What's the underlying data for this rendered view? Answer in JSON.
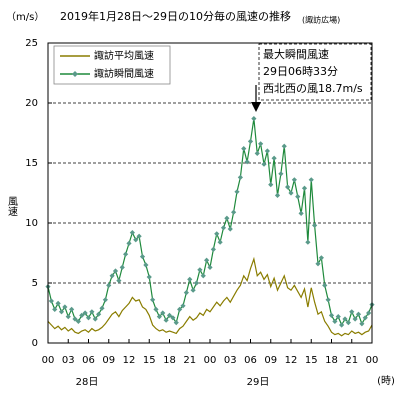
{
  "chart_data": {
    "type": "line",
    "title": "2019年1月28日～29日の10分毎の風速の推移",
    "subtitle": "(諏訪広場)",
    "y_unit": "（m/s）",
    "y_label": "風速",
    "x_unit": "(時)",
    "day_labels": [
      "28日",
      "29日"
    ],
    "annotation": [
      "最大瞬間風速",
      "29日06時33分",
      "西北西の風18.7m/s"
    ],
    "x": [
      0,
      0.5,
      1,
      1.5,
      2,
      2.5,
      3,
      3.5,
      4,
      4.5,
      5,
      5.5,
      6,
      6.5,
      7,
      7.5,
      8,
      8.5,
      9,
      9.5,
      10,
      10.5,
      11,
      11.5,
      12,
      12.5,
      13,
      13.5,
      14,
      14.5,
      15,
      15.5,
      16,
      16.5,
      17,
      17.5,
      18,
      18.5,
      19,
      19.5,
      20,
      20.5,
      21,
      21.5,
      22,
      22.5,
      23,
      23.5,
      24,
      24.5,
      25,
      25.5,
      26,
      26.5,
      27,
      27.5,
      28,
      28.5,
      29,
      29.5,
      30,
      30.5,
      31,
      31.5,
      32,
      32.5,
      33,
      33.5,
      34,
      34.5,
      35,
      35.5,
      36,
      36.5,
      37,
      37.5,
      38,
      38.5,
      39,
      39.5,
      40,
      40.5,
      41,
      41.5,
      42,
      42.5,
      43,
      43.5,
      44,
      44.5,
      45,
      45.5,
      46,
      46.5,
      47,
      47.5,
      48
    ],
    "series": [
      {
        "name": "諏訪平均風速",
        "color": "#8a7d00",
        "marker": "none",
        "values": [
          1.8,
          1.5,
          1.2,
          1.4,
          1.1,
          1.3,
          1.0,
          1.2,
          0.9,
          0.8,
          1.0,
          1.1,
          0.9,
          1.2,
          1.0,
          1.1,
          1.3,
          1.6,
          2.0,
          2.4,
          2.6,
          2.2,
          2.7,
          3.0,
          3.3,
          3.8,
          3.5,
          3.6,
          3.0,
          2.8,
          2.3,
          1.5,
          1.2,
          1.0,
          1.1,
          0.9,
          1.0,
          0.9,
          0.8,
          1.2,
          1.4,
          1.8,
          2.2,
          1.9,
          2.1,
          2.5,
          2.3,
          2.8,
          2.6,
          3.0,
          3.4,
          3.1,
          3.5,
          3.8,
          3.4,
          3.9,
          4.4,
          4.8,
          5.6,
          5.2,
          6.2,
          7.0,
          5.6,
          5.9,
          5.3,
          5.7,
          4.7,
          5.4,
          4.4,
          5.0,
          5.6,
          4.6,
          4.4,
          4.8,
          4.3,
          3.8,
          4.5,
          3.0,
          4.6,
          3.4,
          2.4,
          2.6,
          1.8,
          1.4,
          0.9,
          0.7,
          0.8,
          0.6,
          0.8,
          0.7,
          1.0,
          0.8,
          0.9,
          0.7,
          0.9,
          1.0,
          1.5
        ]
      },
      {
        "name": "諏訪瞬間風速",
        "color": "#1f8a3c",
        "marker": "diamond",
        "marker_color": "#5a9a8a",
        "values": [
          4.7,
          3.5,
          2.8,
          3.3,
          2.6,
          3.0,
          2.2,
          2.8,
          2.0,
          1.8,
          2.3,
          2.5,
          2.1,
          2.6,
          2.0,
          2.4,
          2.9,
          3.6,
          4.8,
          5.6,
          6.0,
          5.2,
          6.3,
          7.4,
          8.3,
          9.2,
          8.6,
          8.9,
          7.2,
          6.5,
          5.5,
          3.6,
          2.8,
          2.2,
          2.5,
          1.9,
          2.3,
          2.1,
          1.7,
          2.8,
          3.1,
          4.2,
          5.3,
          4.4,
          5.0,
          6.1,
          5.6,
          6.9,
          6.3,
          7.8,
          9.1,
          8.4,
          9.6,
          10.4,
          9.5,
          10.9,
          12.6,
          13.8,
          16.2,
          15.1,
          16.8,
          18.7,
          15.8,
          16.6,
          14.9,
          16.0,
          13.2,
          15.4,
          12.3,
          14.1,
          16.4,
          13.0,
          12.5,
          13.6,
          12.2,
          10.8,
          12.9,
          8.4,
          13.6,
          9.8,
          6.6,
          7.1,
          4.8,
          3.6,
          2.3,
          1.8,
          2.2,
          1.5,
          2.0,
          1.7,
          2.6,
          2.0,
          2.4,
          1.6,
          2.1,
          2.5,
          3.2
        ]
      }
    ],
    "xlim": [
      0,
      48
    ],
    "xticks": [
      {
        "value": 0,
        "label": "00"
      },
      {
        "value": 3,
        "label": "03"
      },
      {
        "value": 6,
        "label": "06"
      },
      {
        "value": 9,
        "label": "09"
      },
      {
        "value": 12,
        "label": "12"
      },
      {
        "value": 15,
        "label": "15"
      },
      {
        "value": 18,
        "label": "18"
      },
      {
        "value": 21,
        "label": "21"
      },
      {
        "value": 24,
        "label": "00"
      },
      {
        "value": 27,
        "label": "03"
      },
      {
        "value": 30,
        "label": "06"
      },
      {
        "value": 33,
        "label": "09"
      },
      {
        "value": 36,
        "label": "12"
      },
      {
        "value": 39,
        "label": "15"
      },
      {
        "value": 42,
        "label": "18"
      },
      {
        "value": 45,
        "label": "21"
      },
      {
        "value": 48,
        "label": "00"
      }
    ],
    "ylim": [
      0,
      25
    ],
    "yticks": [
      0,
      5,
      10,
      15,
      20,
      25
    ],
    "grid": true,
    "legend": "upper left"
  }
}
